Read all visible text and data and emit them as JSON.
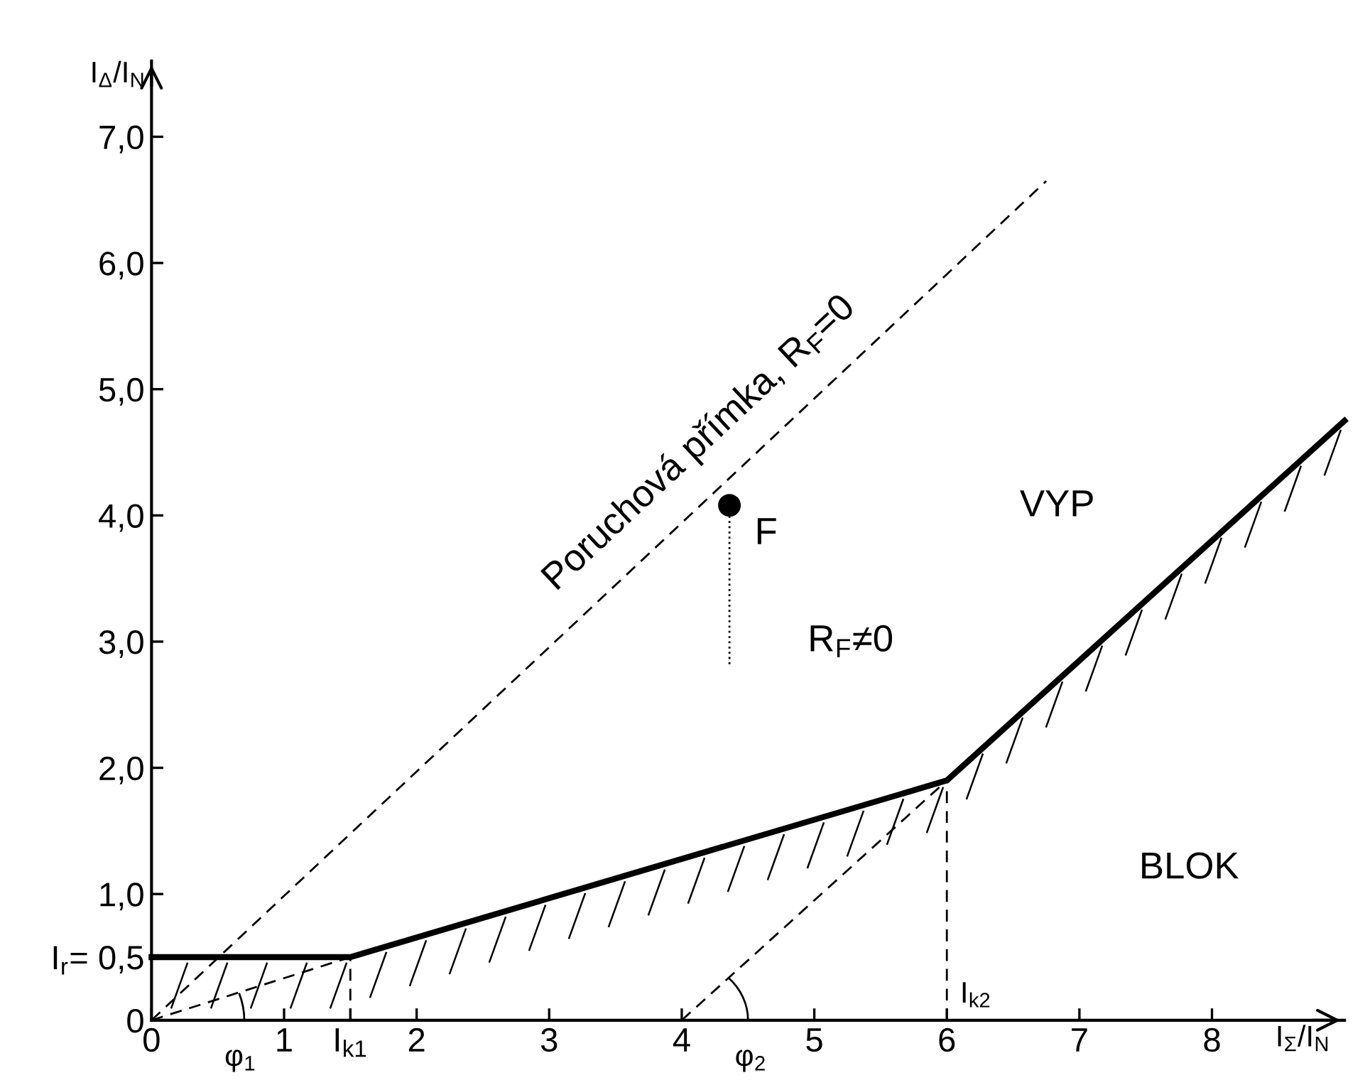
{
  "chart_data": {
    "type": "line",
    "xlabel": "I$_{Σ}$/I$_{N}$",
    "ylabel": "I$_{Δ}$/I$_{N}$",
    "xlim": [
      0,
      9.0
    ],
    "ylim": [
      0,
      7.6
    ],
    "xticks": [
      0,
      1,
      {
        "value": 1.5,
        "label": "I$_{k1}$"
      },
      2,
      3,
      4,
      5,
      6,
      7,
      8
    ],
    "yticks": [
      0,
      {
        "value": 0.5,
        "label": "I$_{r}$= 0,5"
      },
      {
        "value": 1.0,
        "label": "1,0"
      },
      {
        "value": 2.0,
        "label": "2,0"
      },
      {
        "value": 3.0,
        "label": "3,0"
      },
      {
        "value": 4.0,
        "label": "4,0"
      },
      {
        "value": 5.0,
        "label": "5,0"
      },
      {
        "value": 6.0,
        "label": "6,0"
      },
      {
        "value": 7.0,
        "label": "7,0"
      }
    ],
    "grid": false,
    "series": [
      {
        "color": "#000000",
        "line_style": "solid",
        "x": [
          0,
          1.5,
          6,
          9.0
        ],
        "values": [
          0.5,
          0.5,
          1.9,
          4.75
        ]
      },
      {
        "color": "#000000",
        "line_style": "dashed",
        "x": [
          0,
          6.75
        ],
        "values": [
          0,
          6.65
        ]
      },
      {
        "color": "#000000",
        "line_style": "dashed",
        "x": [
          0,
          1.5
        ],
        "values": [
          0,
          0.5
        ]
      },
      {
        "color": "#000000",
        "line_style": "dashed",
        "x": [
          4.0,
          6
        ],
        "values": [
          0,
          1.9
        ]
      },
      {
        "color": "#000000",
        "line_style": "dashed",
        "x": [
          1.5,
          1.5
        ],
        "values": [
          0,
          0.5
        ]
      },
      {
        "color": "#000000",
        "line_style": "dashed",
        "x": [
          6,
          6
        ],
        "values": [
          0,
          1.9
        ]
      },
      {
        "color": "#000000",
        "line_style": "dotted",
        "x": [
          4.36,
          4.36
        ],
        "values": [
          4.08,
          2.8
        ]
      },
      {
        "type": "scatter",
        "color": "#000000",
        "marker": "circle",
        "x": [
          4.36
        ],
        "values": [
          4.08
        ]
      }
    ],
    "annotations": [
      "Poruchová přímka, R$_{F}$=0",
      "F",
      "R$_{F}$≠0",
      "VYP",
      "BLOK",
      "I$_{k2}$",
      "φ$_{1}$",
      {
        "text": "φ$_{2}$",
        "x": 4.0,
        "y": 0
      }
    ]
  }
}
